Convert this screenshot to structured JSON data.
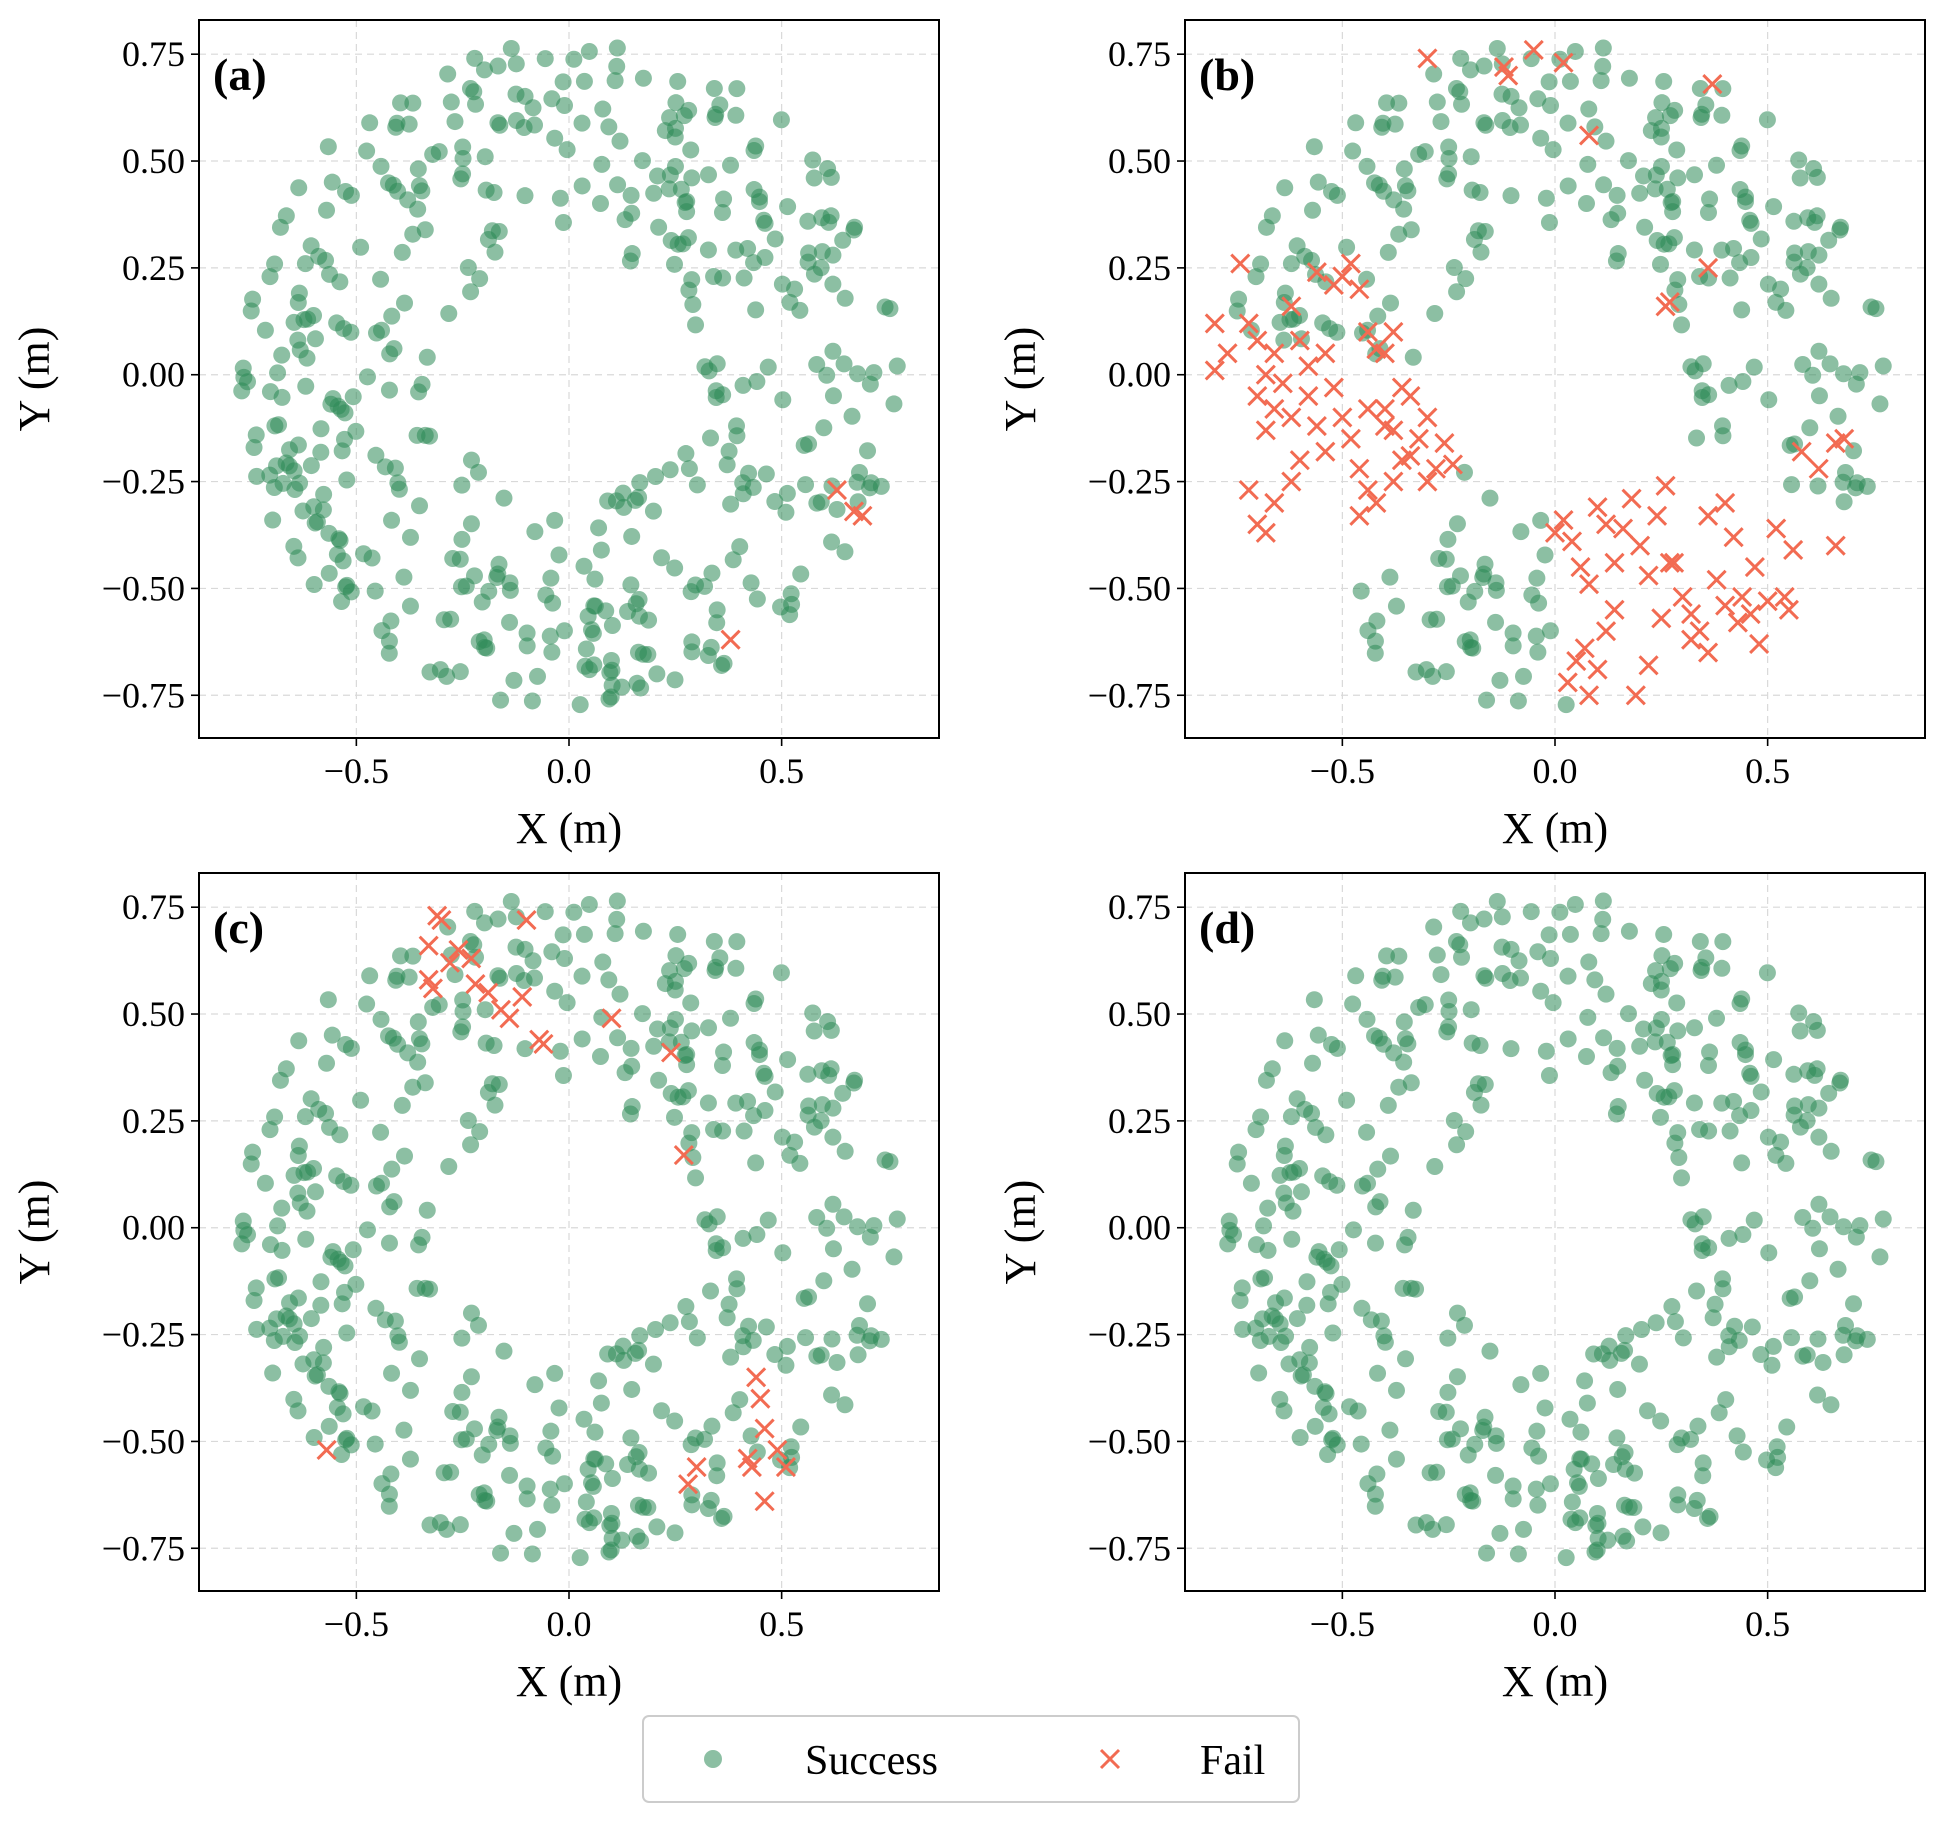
{
  "figure": {
    "colors": {
      "success": "#2e8b57",
      "fail": "#f26b52"
    },
    "legend": {
      "success_label": "Success",
      "fail_label": "Fail"
    }
  },
  "chart_data": [
    {
      "type": "scatter",
      "panel": "(a)",
      "xlabel": "X (m)",
      "ylabel": "Y (m)",
      "xlim": [
        -0.87,
        0.87
      ],
      "ylim": [
        -0.85,
        0.83
      ],
      "xticks": [
        "−0.5",
        "0.0",
        "0.5"
      ],
      "xtick_values": [
        -0.5,
        0.0,
        0.5
      ],
      "yticks": [
        "−0.75",
        "−0.50",
        "−0.25",
        "0.00",
        "0.25",
        "0.50",
        "0.75"
      ],
      "ytick_values": [
        -0.75,
        -0.5,
        -0.25,
        0.0,
        0.25,
        0.5,
        0.75
      ],
      "series": [
        {
          "name": "Success",
          "marker": "circle",
          "seed": 7,
          "count": 460,
          "r_inner": 0.3,
          "r_outer": 0.78,
          "excluded": []
        },
        {
          "name": "Fail",
          "marker": "x",
          "points": [
            [
              0.63,
              -0.27
            ],
            [
              0.67,
              -0.32
            ],
            [
              0.69,
              -0.33
            ],
            [
              0.38,
              -0.62
            ]
          ]
        }
      ]
    },
    {
      "type": "scatter",
      "panel": "(b)",
      "xlabel": "X (m)",
      "ylabel": "Y (m)",
      "xlim": [
        -0.87,
        0.87
      ],
      "ylim": [
        -0.85,
        0.83
      ],
      "xticks": [
        "−0.5",
        "0.0",
        "0.5"
      ],
      "xtick_values": [
        -0.5,
        0.0,
        0.5
      ],
      "yticks": [
        "−0.75",
        "−0.50",
        "−0.25",
        "0.00",
        "0.25",
        "0.50",
        "0.75"
      ],
      "ytick_values": [
        -0.75,
        -0.5,
        -0.25,
        0.0,
        0.25,
        0.5,
        0.75
      ],
      "series": [
        {
          "name": "Success",
          "marker": "circle",
          "seed": 7,
          "count": 460,
          "r_inner": 0.3,
          "r_outer": 0.78,
          "excluded": [
            [
              3.05,
              3.95
            ],
            [
              4.75,
              5.85
            ]
          ]
        },
        {
          "name": "Fail",
          "marker": "x",
          "points": [
            [
              -0.3,
              0.74
            ],
            [
              -0.12,
              0.72
            ],
            [
              -0.11,
              0.7
            ],
            [
              -0.05,
              0.76
            ],
            [
              0.02,
              0.73
            ],
            [
              0.08,
              0.56
            ],
            [
              0.37,
              0.68
            ],
            [
              -0.8,
              0.12
            ],
            [
              -0.8,
              0.01
            ],
            [
              -0.77,
              0.05
            ],
            [
              -0.74,
              0.26
            ],
            [
              -0.72,
              0.12
            ],
            [
              -0.7,
              0.08
            ],
            [
              -0.68,
              0.0
            ],
            [
              -0.66,
              0.05
            ],
            [
              -0.62,
              0.16
            ],
            [
              -0.6,
              0.08
            ],
            [
              -0.58,
              0.02
            ],
            [
              -0.56,
              0.24
            ],
            [
              -0.54,
              0.05
            ],
            [
              -0.52,
              0.21
            ],
            [
              -0.5,
              0.23
            ],
            [
              -0.48,
              0.26
            ],
            [
              -0.46,
              0.2
            ],
            [
              -0.44,
              0.1
            ],
            [
              -0.42,
              0.06
            ],
            [
              -0.4,
              0.05
            ],
            [
              -0.38,
              0.1
            ],
            [
              -0.7,
              -0.05
            ],
            [
              -0.68,
              -0.13
            ],
            [
              -0.66,
              -0.08
            ],
            [
              -0.64,
              -0.02
            ],
            [
              -0.62,
              -0.1
            ],
            [
              -0.6,
              -0.2
            ],
            [
              -0.58,
              -0.05
            ],
            [
              -0.56,
              -0.12
            ],
            [
              -0.54,
              -0.18
            ],
            [
              -0.52,
              -0.03
            ],
            [
              -0.5,
              -0.1
            ],
            [
              -0.48,
              -0.15
            ],
            [
              -0.46,
              -0.22
            ],
            [
              -0.44,
              -0.08
            ],
            [
              -0.42,
              -0.3
            ],
            [
              -0.4,
              -0.12
            ],
            [
              -0.38,
              -0.13
            ],
            [
              -0.36,
              -0.2
            ],
            [
              -0.34,
              -0.05
            ],
            [
              -0.32,
              -0.15
            ],
            [
              -0.3,
              -0.25
            ],
            [
              -0.28,
              -0.22
            ],
            [
              -0.26,
              -0.16
            ],
            [
              -0.72,
              -0.27
            ],
            [
              -0.7,
              -0.35
            ],
            [
              -0.68,
              -0.37
            ],
            [
              -0.66,
              -0.3
            ],
            [
              -0.62,
              -0.25
            ],
            [
              -0.46,
              -0.33
            ],
            [
              -0.44,
              -0.27
            ],
            [
              -0.4,
              -0.08
            ],
            [
              -0.38,
              -0.25
            ],
            [
              -0.34,
              -0.19
            ],
            [
              -0.3,
              -0.1
            ],
            [
              -0.24,
              -0.21
            ],
            [
              -0.36,
              -0.03
            ],
            [
              0.0,
              -0.37
            ],
            [
              0.02,
              -0.34
            ],
            [
              0.04,
              -0.39
            ],
            [
              0.06,
              -0.45
            ],
            [
              0.08,
              -0.49
            ],
            [
              0.1,
              -0.31
            ],
            [
              0.12,
              -0.35
            ],
            [
              0.14,
              -0.44
            ],
            [
              0.16,
              -0.36
            ],
            [
              0.18,
              -0.29
            ],
            [
              0.2,
              -0.4
            ],
            [
              0.22,
              -0.47
            ],
            [
              0.24,
              -0.33
            ],
            [
              0.26,
              -0.26
            ],
            [
              0.28,
              -0.44
            ],
            [
              0.3,
              -0.52
            ],
            [
              0.32,
              -0.56
            ],
            [
              0.34,
              -0.6
            ],
            [
              0.36,
              -0.65
            ],
            [
              0.38,
              -0.48
            ],
            [
              0.4,
              -0.3
            ],
            [
              0.42,
              -0.38
            ],
            [
              0.44,
              -0.52
            ],
            [
              0.46,
              -0.56
            ],
            [
              0.48,
              -0.63
            ],
            [
              0.5,
              -0.53
            ],
            [
              0.52,
              -0.36
            ],
            [
              0.54,
              -0.52
            ],
            [
              0.56,
              -0.41
            ],
            [
              0.58,
              -0.18
            ],
            [
              0.03,
              -0.72
            ],
            [
              0.05,
              -0.67
            ],
            [
              0.07,
              -0.64
            ],
            [
              0.08,
              -0.75
            ],
            [
              0.1,
              -0.69
            ],
            [
              0.12,
              -0.6
            ],
            [
              0.14,
              -0.55
            ],
            [
              0.19,
              -0.75
            ],
            [
              0.22,
              -0.68
            ],
            [
              0.25,
              -0.57
            ],
            [
              0.27,
              -0.44
            ],
            [
              0.32,
              -0.62
            ],
            [
              0.36,
              -0.33
            ],
            [
              0.4,
              -0.54
            ],
            [
              0.43,
              -0.58
            ],
            [
              0.47,
              -0.45
            ],
            [
              0.55,
              -0.55
            ],
            [
              0.62,
              -0.22
            ],
            [
              0.66,
              -0.16
            ],
            [
              0.68,
              -0.15
            ],
            [
              0.66,
              -0.4
            ],
            [
              0.26,
              0.16
            ],
            [
              0.27,
              0.17
            ],
            [
              0.36,
              0.25
            ]
          ]
        }
      ]
    },
    {
      "type": "scatter",
      "panel": "(c)",
      "xlabel": "X (m)",
      "ylabel": "Y (m)",
      "xlim": [
        -0.87,
        0.87
      ],
      "ylim": [
        -0.85,
        0.83
      ],
      "xticks": [
        "−0.5",
        "0.0",
        "0.5"
      ],
      "xtick_values": [
        -0.5,
        0.0,
        0.5
      ],
      "yticks": [
        "−0.75",
        "−0.50",
        "−0.25",
        "0.00",
        "0.25",
        "0.50",
        "0.75"
      ],
      "ytick_values": [
        -0.75,
        -0.5,
        -0.25,
        0.0,
        0.25,
        0.5,
        0.75
      ],
      "series": [
        {
          "name": "Success",
          "marker": "circle",
          "seed": 7,
          "count": 460,
          "r_inner": 0.3,
          "r_outer": 0.78,
          "excluded": []
        },
        {
          "name": "Fail",
          "marker": "x",
          "points": [
            [
              -0.31,
              0.73
            ],
            [
              -0.3,
              0.72
            ],
            [
              -0.33,
              0.66
            ],
            [
              -0.33,
              0.58
            ],
            [
              -0.32,
              0.56
            ],
            [
              -0.28,
              0.62
            ],
            [
              -0.26,
              0.65
            ],
            [
              -0.23,
              0.63
            ],
            [
              -0.22,
              0.57
            ],
            [
              -0.19,
              0.55
            ],
            [
              -0.16,
              0.51
            ],
            [
              -0.14,
              0.49
            ],
            [
              -0.11,
              0.54
            ],
            [
              -0.1,
              0.72
            ],
            [
              -0.07,
              0.44
            ],
            [
              -0.06,
              0.43
            ],
            [
              0.1,
              0.49
            ],
            [
              0.24,
              0.41
            ],
            [
              0.27,
              0.17
            ],
            [
              -0.57,
              -0.52
            ],
            [
              0.28,
              -0.6
            ],
            [
              0.3,
              -0.56
            ],
            [
              0.42,
              -0.54
            ],
            [
              0.43,
              -0.56
            ],
            [
              0.44,
              -0.35
            ],
            [
              0.45,
              -0.4
            ],
            [
              0.46,
              -0.47
            ],
            [
              0.46,
              -0.64
            ],
            [
              0.49,
              -0.52
            ],
            [
              0.51,
              -0.56
            ]
          ]
        }
      ]
    },
    {
      "type": "scatter",
      "panel": "(d)",
      "xlabel": "X (m)",
      "ylabel": "Y (m)",
      "xlim": [
        -0.87,
        0.87
      ],
      "ylim": [
        -0.85,
        0.83
      ],
      "xticks": [
        "−0.5",
        "0.0",
        "0.5"
      ],
      "xtick_values": [
        -0.5,
        0.0,
        0.5
      ],
      "yticks": [
        "−0.75",
        "−0.50",
        "−0.25",
        "0.00",
        "0.25",
        "0.50",
        "0.75"
      ],
      "ytick_values": [
        -0.75,
        -0.5,
        -0.25,
        0.0,
        0.25,
        0.5,
        0.75
      ],
      "series": [
        {
          "name": "Success",
          "marker": "circle",
          "seed": 7,
          "count": 460,
          "r_inner": 0.3,
          "r_outer": 0.78,
          "excluded": []
        },
        {
          "name": "Fail",
          "marker": "x",
          "points": []
        }
      ]
    }
  ]
}
